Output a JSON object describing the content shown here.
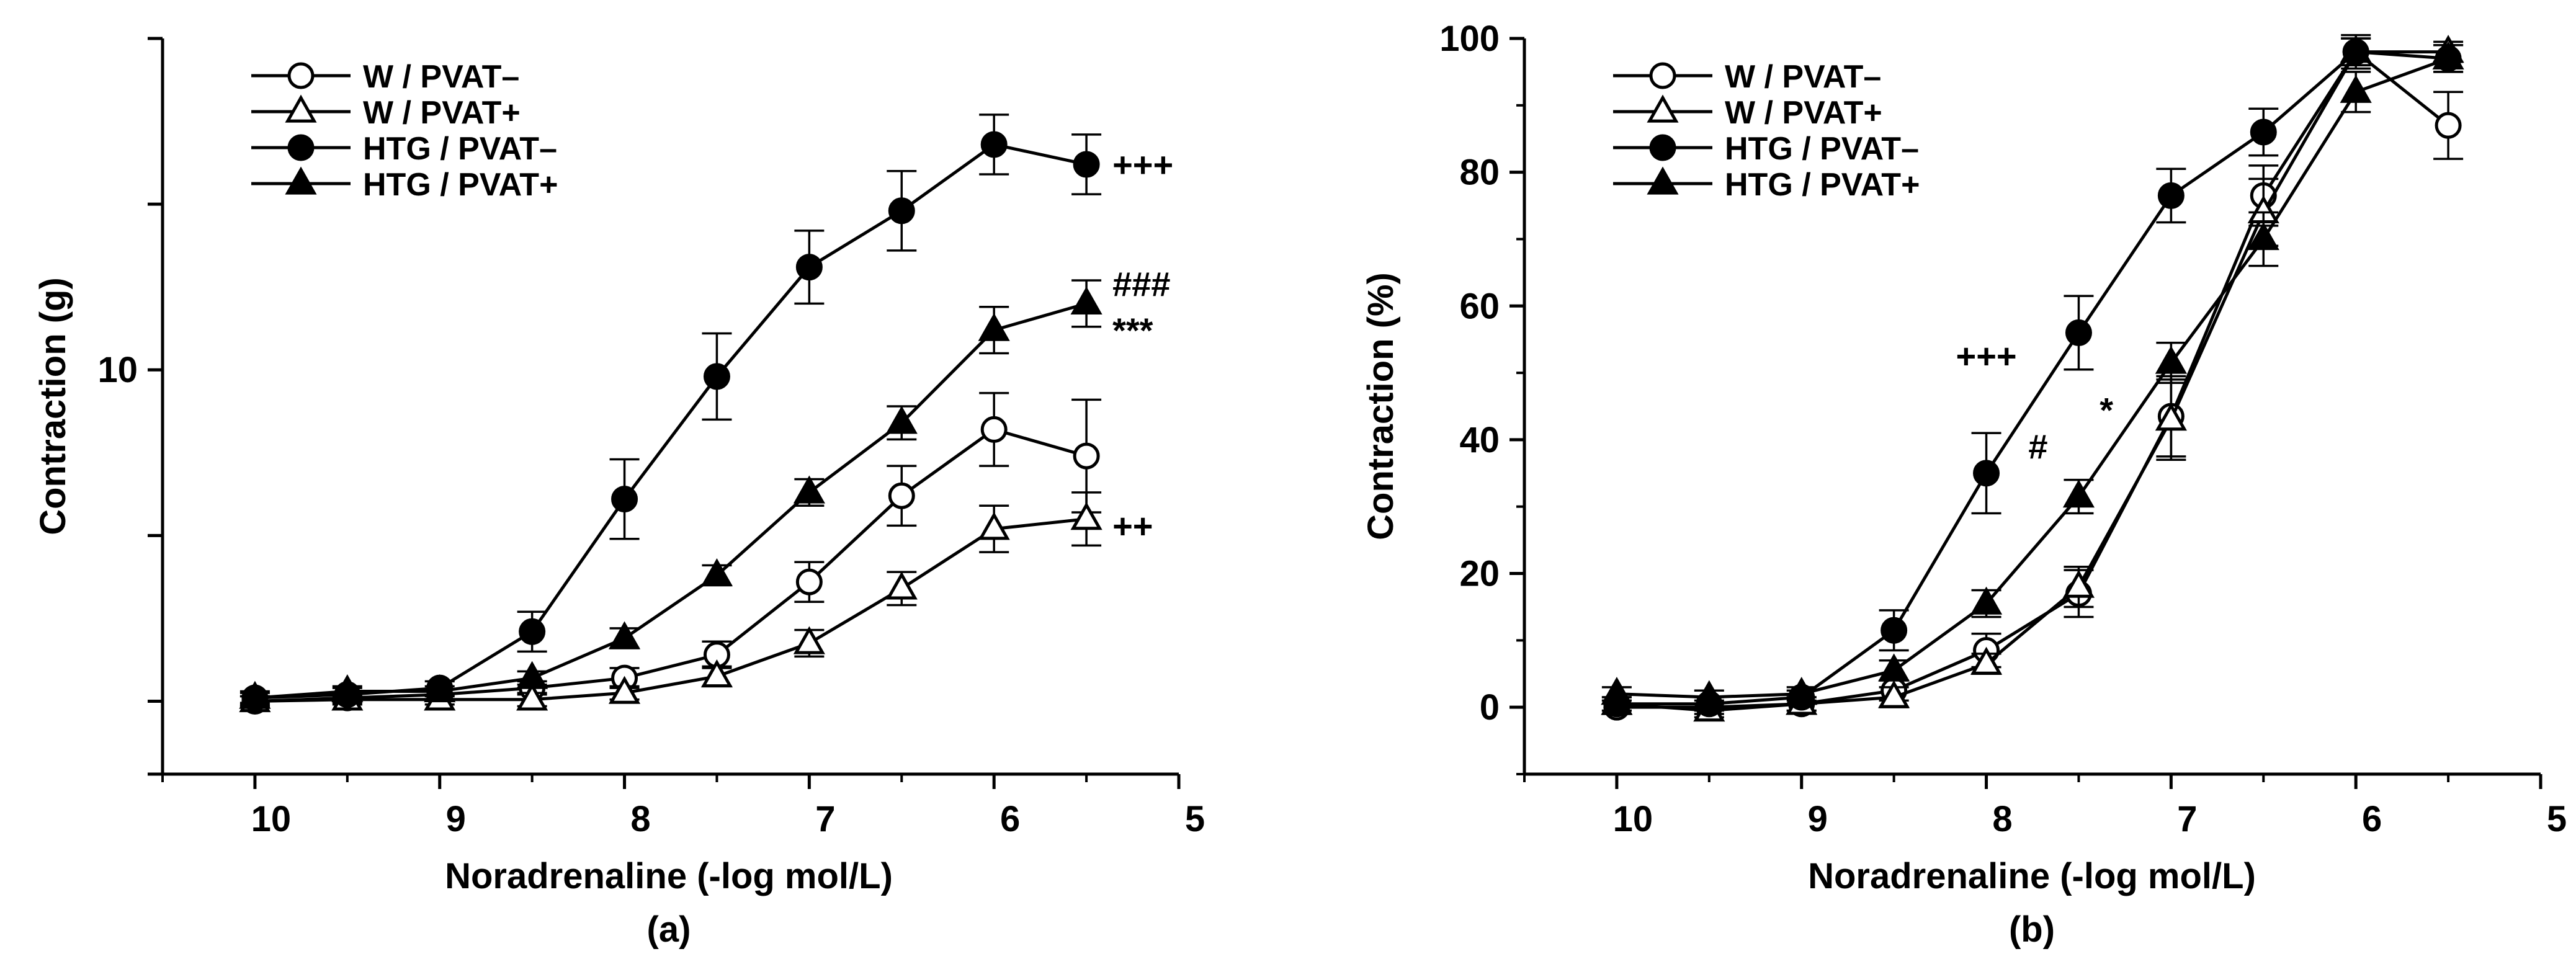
{
  "colors": {
    "ink": "#000000",
    "paper": "#ffffff"
  },
  "legend": {
    "items": [
      {
        "label": "W / PVAT–",
        "marker": "open-circle-icon"
      },
      {
        "label": "W / PVAT+",
        "marker": "open-triangle-icon"
      },
      {
        "label": "HTG / PVAT–",
        "marker": "filled-circle-icon"
      },
      {
        "label": "HTG / PVAT+",
        "marker": "filled-triangle-icon"
      }
    ]
  },
  "chart_data": [
    {
      "panel_label": "(a)",
      "type": "line",
      "xlabel": "Noradrenaline (-log mol/L)",
      "ylabel": "Contraction (g)",
      "xlim": [
        10.5,
        5
      ],
      "xticks": [
        10,
        9,
        8,
        7,
        6,
        5
      ],
      "ylim": [
        -2.2,
        20
      ],
      "yticks": [
        {
          "value": 10,
          "label": "10"
        }
      ],
      "yticks_unlabeled": [
        -2.2,
        0,
        5,
        15,
        20
      ],
      "x": [
        10,
        9.5,
        9,
        8.5,
        8,
        7.5,
        7,
        6.5,
        6,
        5.5
      ],
      "series": [
        {
          "name": "W / PVAT–",
          "marker": "circle",
          "fill": "open",
          "values": [
            0,
            0.1,
            0.2,
            0.4,
            0.7,
            1.4,
            3.6,
            6.2,
            8.2,
            7.4
          ],
          "errors": [
            0.15,
            0.15,
            0.15,
            0.2,
            0.3,
            0.4,
            0.6,
            0.9,
            1.1,
            1.7
          ]
        },
        {
          "name": "W / PVAT+",
          "marker": "triangle",
          "fill": "open",
          "values": [
            0,
            0.05,
            0.05,
            0.05,
            0.25,
            0.75,
            1.75,
            3.4,
            5.2,
            5.5
          ],
          "errors": [
            0.15,
            0.15,
            0.15,
            0.2,
            0.2,
            0.3,
            0.4,
            0.5,
            0.7,
            0.8
          ]
        },
        {
          "name": "HTG / PVAT–",
          "marker": "circle",
          "fill": "filled",
          "values": [
            0.1,
            0.2,
            0.4,
            2.1,
            6.1,
            9.8,
            13.1,
            14.8,
            16.8,
            16.2
          ],
          "errors": [
            0.2,
            0.2,
            0.2,
            0.6,
            1.2,
            1.3,
            1.1,
            1.2,
            0.9,
            0.9
          ]
        },
        {
          "name": "HTG / PVAT+",
          "marker": "triangle",
          "fill": "filled",
          "values": [
            0.1,
            0.3,
            0.3,
            0.7,
            1.9,
            3.8,
            6.3,
            8.4,
            11.2,
            12
          ],
          "errors": [
            0.15,
            0.15,
            0.15,
            0.2,
            0.3,
            0.3,
            0.4,
            0.5,
            0.7,
            0.7
          ]
        }
      ],
      "annotations": [
        {
          "text": "+++",
          "x": 5.5,
          "y": 16.2,
          "anchor": "right-of-point"
        },
        {
          "text": "###",
          "x": 5.5,
          "y": 12.6,
          "anchor": "right-of-point"
        },
        {
          "text": "***",
          "x": 5.5,
          "y": 11.2,
          "anchor": "right-of-point"
        },
        {
          "text": "++",
          "x": 5.5,
          "y": 5.3,
          "anchor": "right-of-point"
        }
      ]
    },
    {
      "panel_label": "(b)",
      "type": "line",
      "xlabel": "Noradrenaline (-log mol/L)",
      "ylabel": "Contraction (%)",
      "xlim": [
        10.5,
        5
      ],
      "xticks": [
        10,
        9,
        8,
        7,
        6,
        5
      ],
      "ylim": [
        -10,
        100
      ],
      "yticks": [
        {
          "value": 0,
          "label": "0"
        },
        {
          "value": 20,
          "label": "20"
        },
        {
          "value": 40,
          "label": "40"
        },
        {
          "value": 60,
          "label": "60"
        },
        {
          "value": 80,
          "label": "80"
        },
        {
          "value": 100,
          "label": "100"
        }
      ],
      "x": [
        10,
        9.5,
        9,
        8.5,
        8,
        7.5,
        7,
        6.5,
        6,
        5.5
      ],
      "series": [
        {
          "name": "W / PVAT–",
          "marker": "circle",
          "fill": "open",
          "values": [
            0,
            0,
            0.5,
            2.5,
            8.5,
            17,
            43.5,
            76.5,
            98,
            87
          ],
          "errors": [
            1,
            1,
            1,
            1.5,
            2.5,
            3.5,
            6,
            4.5,
            2.5,
            5
          ]
        },
        {
          "name": "W / PVAT+",
          "marker": "triangle",
          "fill": "open",
          "values": [
            0.5,
            -0.5,
            0.5,
            1.5,
            6.5,
            18,
            43,
            74,
            98,
            98
          ],
          "errors": [
            1,
            1,
            1,
            1.5,
            1.5,
            3,
            6,
            5,
            2,
            1.5
          ]
        },
        {
          "name": "HTG / PVAT–",
          "marker": "circle",
          "fill": "filled",
          "values": [
            0.5,
            0.5,
            1.5,
            11.5,
            35,
            56,
            76.5,
            86,
            98,
            97
          ],
          "errors": [
            1,
            1,
            1,
            3,
            6,
            5.5,
            4,
            3.5,
            2,
            2
          ]
        },
        {
          "name": "HTG / PVAT+",
          "marker": "triangle",
          "fill": "filled",
          "values": [
            2,
            1.5,
            2,
            5.5,
            15.5,
            31.5,
            51.5,
            70,
            92,
            97
          ],
          "errors": [
            1,
            1,
            1,
            1.5,
            2,
            2.5,
            3,
            4,
            3,
            2
          ]
        }
      ],
      "annotations": [
        {
          "text": "+++",
          "x": 8,
          "y": 47,
          "anchor": "above"
        },
        {
          "text": "*",
          "x": 7.35,
          "y": 44.5,
          "anchor": "center"
        },
        {
          "text": "#",
          "x": 7.72,
          "y": 39,
          "anchor": "center"
        }
      ]
    }
  ]
}
